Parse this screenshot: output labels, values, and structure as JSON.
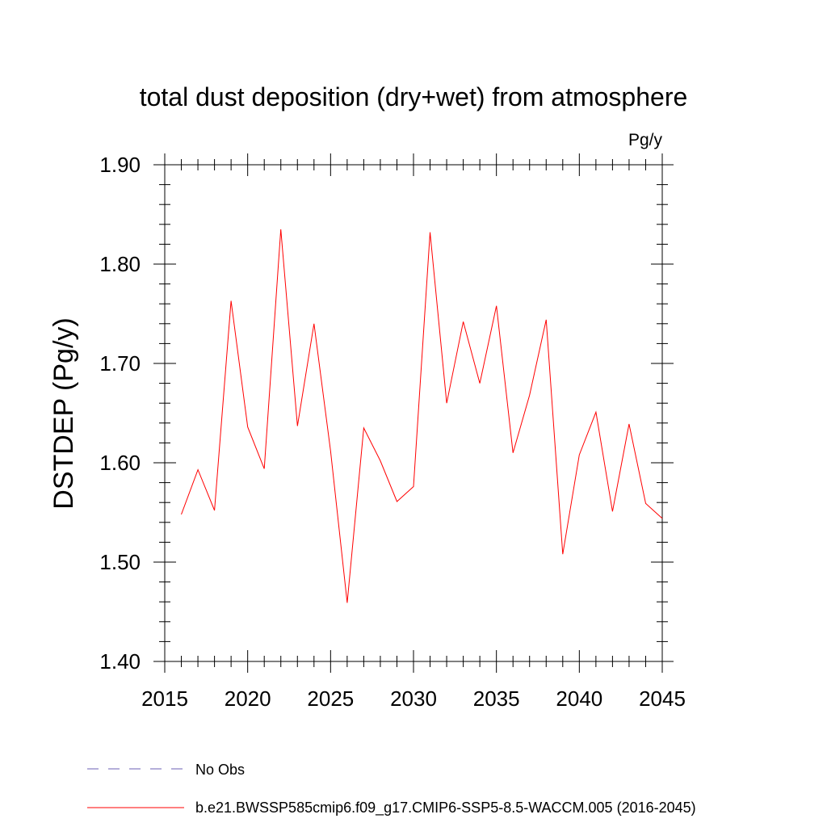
{
  "chart_data": {
    "type": "line",
    "title": "total dust deposition (dry+wet) from atmosphere",
    "units": "Pg/y",
    "ylabel": "DSTDEP  (Pg/y)",
    "xlabel": "",
    "xlim": [
      2015,
      2045
    ],
    "ylim": [
      1.4,
      1.9
    ],
    "x_ticks": [
      2015,
      2020,
      2025,
      2030,
      2035,
      2040,
      2045
    ],
    "x_tick_labels": [
      "2015",
      "2020",
      "2025",
      "2030",
      "2035",
      "2040",
      "2045"
    ],
    "y_ticks": [
      1.4,
      1.5,
      1.6,
      1.7,
      1.8,
      1.9
    ],
    "y_tick_labels": [
      "1.40",
      "1.50",
      "1.60",
      "1.70",
      "1.80",
      "1.90"
    ],
    "series": [
      {
        "name": "b.e21.BWSSP585cmip6.f09_g17.CMIP6-SSP5-8.5-WACCM.005 (2016-2045)",
        "color": "#ff0000",
        "x": [
          2016,
          2017,
          2018,
          2019,
          2020,
          2021,
          2022,
          2023,
          2024,
          2025,
          2026,
          2027,
          2028,
          2029,
          2030,
          2031,
          2032,
          2033,
          2034,
          2035,
          2036,
          2037,
          2038,
          2039,
          2040,
          2041,
          2042,
          2043,
          2044,
          2045
        ],
        "values": [
          1.548,
          1.593,
          1.552,
          1.763,
          1.636,
          1.594,
          1.835,
          1.637,
          1.74,
          1.612,
          1.459,
          1.635,
          1.602,
          1.561,
          1.576,
          1.832,
          1.66,
          1.742,
          1.68,
          1.758,
          1.61,
          1.668,
          1.744,
          1.508,
          1.608,
          1.651,
          1.551,
          1.639,
          1.559,
          1.544
        ]
      }
    ],
    "legend": [
      {
        "label": "No Obs",
        "style": "dashed",
        "color": "#6b5fb5"
      },
      {
        "label": "b.e21.BWSSP585cmip6.f09_g17.CMIP6-SSP5-8.5-WACCM.005 (2016-2045)",
        "style": "solid",
        "color": "#ff0000"
      }
    ]
  }
}
